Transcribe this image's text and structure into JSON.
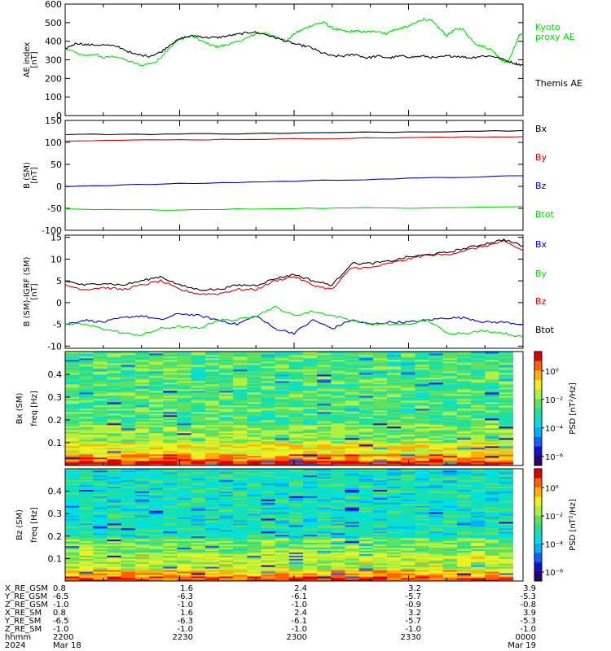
{
  "chart_data": [
    {
      "type": "line",
      "panel": "ae",
      "ylabel_lines": [
        "AE index",
        "[nT]"
      ],
      "ylim": [
        0,
        600
      ],
      "yticks": [
        0,
        100,
        200,
        300,
        400,
        500,
        600
      ],
      "xlim": [
        0,
        120
      ],
      "series": [
        {
          "name": "Kyoto proxy AE",
          "legend_lines": [
            "Kyoto",
            "proxy AE"
          ],
          "color": "#00dd00",
          "x": [
            0,
            5,
            8,
            10,
            13,
            17,
            20,
            24,
            27,
            30,
            33,
            36,
            38,
            40,
            42,
            45,
            48,
            50,
            52,
            54,
            56,
            58,
            60,
            62,
            64,
            66,
            68,
            70,
            72,
            74,
            76,
            78,
            80,
            82,
            84,
            86,
            88,
            90,
            92,
            94,
            96,
            98,
            100,
            102,
            104,
            106,
            108,
            110,
            112,
            114,
            115,
            116,
            117,
            118,
            119,
            120
          ],
          "y": [
            360,
            320,
            330,
            310,
            320,
            290,
            270,
            290,
            360,
            410,
            430,
            400,
            380,
            370,
            380,
            395,
            420,
            440,
            445,
            430,
            420,
            400,
            440,
            460,
            480,
            495,
            500,
            470,
            460,
            450,
            455,
            450,
            450,
            455,
            440,
            460,
            470,
            480,
            500,
            520,
            510,
            470,
            430,
            460,
            470,
            420,
            380,
            370,
            350,
            310,
            290,
            290,
            330,
            380,
            430,
            440
          ]
        },
        {
          "name": "Themis AE",
          "color": "#000000",
          "x": [
            0,
            3,
            6,
            10,
            14,
            18,
            22,
            25,
            28,
            31,
            34,
            37,
            40,
            43,
            46,
            49,
            52,
            55,
            58,
            61,
            64,
            67,
            70,
            73,
            76,
            79,
            82,
            85,
            88,
            91,
            94,
            97,
            100,
            103,
            106,
            109,
            112,
            115,
            118,
            120
          ],
          "y": [
            360,
            390,
            380,
            380,
            370,
            330,
            320,
            340,
            390,
            420,
            430,
            420,
            420,
            430,
            440,
            450,
            440,
            420,
            400,
            380,
            370,
            340,
            320,
            320,
            330,
            310,
            320,
            310,
            320,
            315,
            320,
            310,
            320,
            320,
            310,
            320,
            320,
            300,
            280,
            270
          ]
        }
      ]
    },
    {
      "type": "line",
      "panel": "bsm",
      "ylabel_lines": [
        "B (SM)",
        "[nT]"
      ],
      "ylim": [
        -100,
        150
      ],
      "yticks": [
        -100,
        -50,
        0,
        50,
        100,
        150
      ],
      "xlim": [
        0,
        120
      ],
      "series": [
        {
          "name": "Bx",
          "color": "#000000",
          "x": [
            0,
            30,
            60,
            90,
            120
          ],
          "y": [
            118,
            119,
            121,
            124,
            127
          ]
        },
        {
          "name": "By",
          "color": "#dd0000",
          "x": [
            0,
            30,
            60,
            90,
            120
          ],
          "y": [
            104,
            106,
            108,
            111,
            113
          ]
        },
        {
          "name": "Bz",
          "color": "#0000cc",
          "x": [
            0,
            30,
            60,
            90,
            120
          ],
          "y": [
            0,
            6,
            12,
            18,
            24
          ]
        },
        {
          "name": "Btot",
          "color": "#00dd00",
          "x": [
            0,
            30,
            60,
            90,
            120
          ],
          "y": [
            -52,
            -54,
            -50,
            -49,
            -46
          ]
        }
      ]
    },
    {
      "type": "line",
      "panel": "bigrf",
      "ylabel_lines": [
        "B (SM)-IGRF (SM)",
        "[nT]"
      ],
      "ylim": [
        -10.5,
        15.5
      ],
      "yticks": [
        -10,
        -5,
        0,
        5,
        10,
        15
      ],
      "xlim": [
        0,
        120
      ],
      "series": [
        {
          "name": "Bx",
          "color": "#0000cc",
          "x": [
            0,
            5,
            10,
            15,
            20,
            25,
            30,
            35,
            40,
            45,
            50,
            55,
            60,
            65,
            70,
            75,
            80,
            85,
            90,
            95,
            100,
            105,
            110,
            115,
            120
          ],
          "y": [
            -5,
            -4,
            -4.5,
            -3.5,
            -3,
            -4,
            -2.5,
            -3,
            -4,
            -5,
            -3,
            -6,
            -7,
            -4,
            -6,
            -4,
            -5,
            -4.5,
            -4.5,
            -4,
            -3.5,
            -3.5,
            -4.5,
            -4.5,
            -5
          ]
        },
        {
          "name": "By",
          "color": "#00dd00",
          "x": [
            0,
            5,
            10,
            15,
            20,
            25,
            30,
            35,
            40,
            45,
            50,
            55,
            60,
            65,
            70,
            75,
            80,
            85,
            90,
            95,
            100,
            105,
            110,
            115,
            120
          ],
          "y": [
            -5,
            -5,
            -6,
            -7,
            -7.5,
            -6,
            -5.5,
            -6,
            -4,
            -4,
            -3,
            -1,
            -3,
            -2,
            -3,
            -4,
            -5,
            -5,
            -5,
            -4,
            -7,
            -7,
            -6.5,
            -7,
            -8
          ]
        },
        {
          "name": "Bz",
          "color": "#dd0000",
          "x": [
            0,
            5,
            10,
            15,
            20,
            25,
            30,
            35,
            40,
            45,
            50,
            55,
            60,
            65,
            70,
            75,
            80,
            85,
            90,
            95,
            100,
            105,
            110,
            115,
            120
          ],
          "y": [
            4,
            3,
            3.5,
            3,
            4,
            5,
            3,
            2,
            2,
            3,
            3,
            5,
            6,
            4,
            3,
            8,
            8,
            9,
            10,
            11,
            11,
            12,
            13,
            14,
            12
          ]
        },
        {
          "name": "Btot",
          "color": "#000000",
          "x": [
            0,
            5,
            10,
            15,
            20,
            25,
            30,
            35,
            40,
            45,
            50,
            55,
            60,
            65,
            70,
            75,
            80,
            85,
            90,
            95,
            100,
            105,
            110,
            115,
            120
          ],
          "y": [
            5,
            4,
            4.5,
            4,
            5,
            6,
            4,
            3,
            3,
            4,
            4,
            5.5,
            6.5,
            5,
            4,
            9,
            9,
            9.5,
            10.5,
            11,
            11.5,
            12.5,
            13.5,
            14.5,
            13
          ]
        }
      ]
    },
    {
      "type": "heatmap",
      "panel": "bx_spec",
      "ylabel_lines": [
        "Bx (SM)",
        "freq  [Hz]"
      ],
      "ylim": [
        0,
        0.5
      ],
      "yticks": [
        0.1,
        0.2,
        0.3,
        0.4
      ],
      "colorbar_label": "PSD [nT²/Hz]",
      "colorbar_ticks": [
        "10⁰",
        "10⁻²",
        "10⁻⁴",
        "10⁻⁶"
      ]
    },
    {
      "type": "heatmap",
      "panel": "bz_spec",
      "ylabel_lines": [
        "Bz (SM)",
        "freq  [Hz]"
      ],
      "ylim": [
        0,
        0.5
      ],
      "yticks": [
        0.1,
        0.2,
        0.3,
        0.4
      ],
      "colorbar_label": "PSD [nT²/Hz]",
      "colorbar_ticks": [
        "10⁰",
        "10⁻²",
        "10⁻⁴",
        "10⁻⁶"
      ]
    }
  ],
  "xaxis_table": {
    "row_labels": [
      "X_RE_GSM",
      "Y_RE_GSM",
      "Z_RE_GSM",
      "X_RE_SM",
      "Y_RE_SM",
      "Z_RE_SM",
      "hhmm",
      "2024"
    ],
    "columns": [
      [
        "0.8",
        "-6.5",
        "-1.0",
        "0.8",
        "-6.5",
        "-1.0",
        "2200",
        "Mar 18"
      ],
      [
        "1.6",
        "-6.3",
        "-1.0",
        "1.6",
        "-6.3",
        "-1.0",
        "2230",
        ""
      ],
      [
        "2.4",
        "-6.1",
        "-1.0",
        "2.4",
        "-6.1",
        "-1.0",
        "2300",
        ""
      ],
      [
        "3.2",
        "-5.7",
        "-0.9",
        "3.2",
        "-5.7",
        "-1.0",
        "2330",
        ""
      ],
      [
        "3.9",
        "-5.3",
        "-0.8",
        "3.9",
        "-5.3",
        "-1.0",
        "0000",
        "Mar 19"
      ]
    ]
  }
}
